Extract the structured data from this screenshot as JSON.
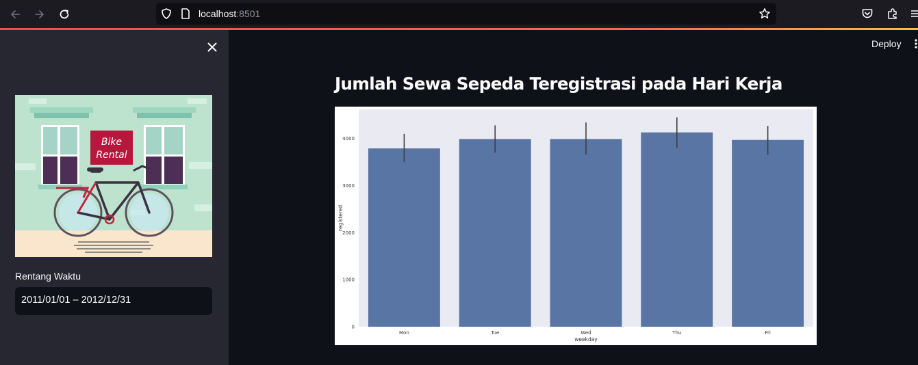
{
  "browser": {
    "url_host": "localhost",
    "url_port": ":8501",
    "icons": [
      "back-arrow-icon",
      "forward-arrow-icon",
      "reload-icon",
      "shield-icon",
      "page-icon",
      "star-icon",
      "pocket-icon",
      "extensions-icon",
      "menu-icon"
    ]
  },
  "sidebar": {
    "logo": {
      "sign_line1": "Bike",
      "sign_line2": "Rental"
    },
    "date_label": "Rentang Waktu",
    "date_value": "2011/01/01 – 2012/12/31"
  },
  "header": {
    "deploy_label": "Deploy"
  },
  "main": {
    "title": "Jumlah Sewa Sepeda Teregistrasi pada Hari Kerja"
  },
  "colors": {
    "bar": "#5975a4",
    "plot_bg": "#eaeaf2",
    "app_bg": "#0e1117",
    "sidebar_bg": "#262730"
  },
  "chart_data": {
    "type": "bar",
    "categories": [
      "Mon",
      "Tue",
      "Wed",
      "Thu",
      "Fri"
    ],
    "values": [
      3790,
      3990,
      3990,
      4130,
      3970
    ],
    "error_low": [
      3500,
      3700,
      3660,
      3800,
      3650
    ],
    "error_high": [
      4100,
      4280,
      4340,
      4450,
      4270
    ],
    "xlabel": "weekday",
    "ylabel": "registered",
    "yticks": [
      0,
      1000,
      2000,
      3000,
      4000
    ],
    "ylim": [
      0,
      4620
    ],
    "grid": false,
    "legend": "none"
  }
}
